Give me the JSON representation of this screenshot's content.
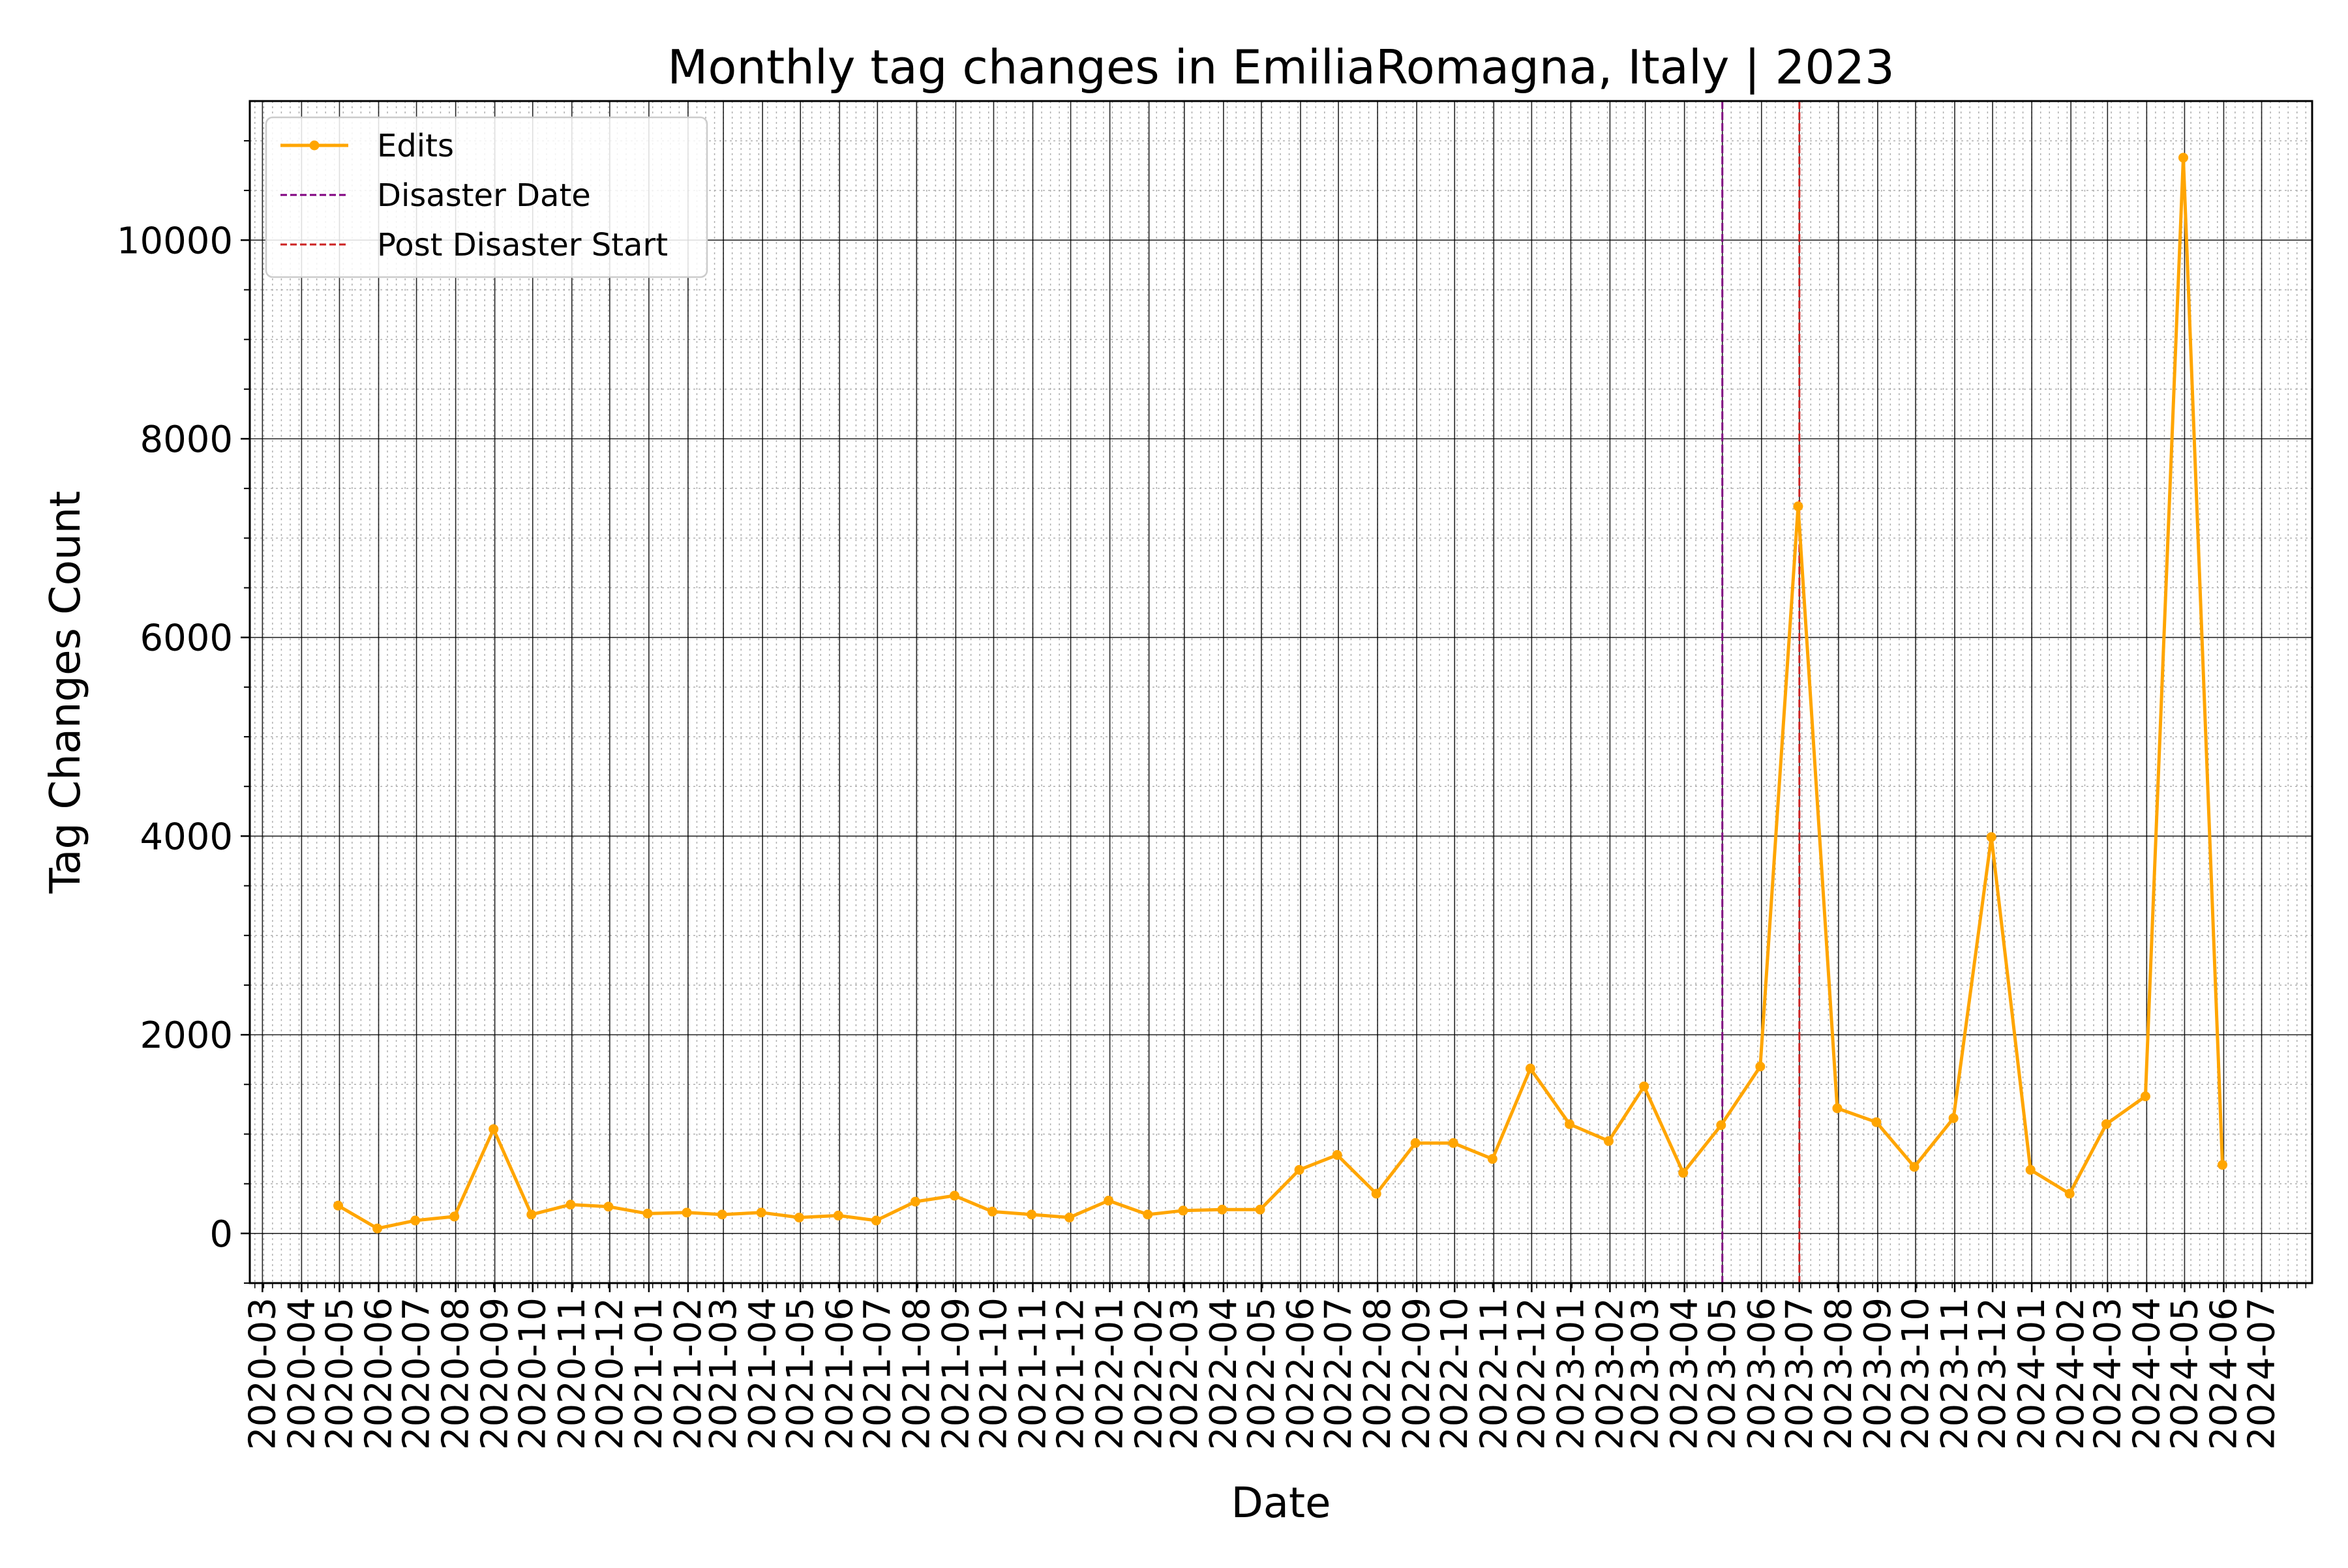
{
  "chart_data": {
    "type": "line",
    "title": "Monthly tag changes in EmiliaRomagna, Italy | 2023",
    "xlabel": "Date",
    "ylabel": "Tag Changes Count",
    "x_tick_labels": [
      "2020-03",
      "2020-04",
      "2020-05",
      "2020-06",
      "2020-07",
      "2020-08",
      "2020-09",
      "2020-10",
      "2020-11",
      "2020-12",
      "2021-01",
      "2021-02",
      "2021-03",
      "2021-04",
      "2021-05",
      "2021-06",
      "2021-07",
      "2021-08",
      "2021-09",
      "2021-10",
      "2021-11",
      "2021-12",
      "2022-01",
      "2022-02",
      "2022-03",
      "2022-04",
      "2022-05",
      "2022-06",
      "2022-07",
      "2022-08",
      "2022-09",
      "2022-10",
      "2022-11",
      "2022-12",
      "2023-01",
      "2023-02",
      "2023-03",
      "2023-04",
      "2023-05",
      "2023-06",
      "2023-07",
      "2023-08",
      "2023-09",
      "2023-10",
      "2023-11",
      "2023-12",
      "2024-01",
      "2024-02",
      "2024-03",
      "2024-04",
      "2024-05",
      "2024-06",
      "2024-07"
    ],
    "xlim": [
      "2020-02-20",
      "2024-08-10"
    ],
    "ylim": [
      -500,
      11400
    ],
    "y_ticks": [
      0,
      2000,
      4000,
      6000,
      8000,
      10000
    ],
    "y_tick_labels": [
      "0",
      "2000",
      "4000",
      "6000",
      "8000",
      "10000"
    ],
    "y_minor_step": 500,
    "grid": true,
    "legend_position": "top-left",
    "series": [
      {
        "name": "Edits",
        "color": "#FFA500",
        "marker": "circle",
        "x": [
          "2020-04-30",
          "2020-05-31",
          "2020-06-30",
          "2020-07-31",
          "2020-08-31",
          "2020-09-30",
          "2020-10-31",
          "2020-11-30",
          "2020-12-31",
          "2021-01-31",
          "2021-02-28",
          "2021-03-31",
          "2021-04-30",
          "2021-05-31",
          "2021-06-30",
          "2021-07-31",
          "2021-08-31",
          "2021-09-30",
          "2021-10-31",
          "2021-11-30",
          "2021-12-31",
          "2022-01-31",
          "2022-02-28",
          "2022-03-31",
          "2022-04-30",
          "2022-05-31",
          "2022-06-30",
          "2022-07-31",
          "2022-08-31",
          "2022-09-30",
          "2022-10-31",
          "2022-11-30",
          "2022-12-31",
          "2023-01-31",
          "2023-02-28",
          "2023-03-31",
          "2023-04-30",
          "2023-05-31",
          "2023-06-30",
          "2023-07-31",
          "2023-08-31",
          "2023-09-30",
          "2023-10-31",
          "2023-11-30",
          "2023-12-31",
          "2024-01-31",
          "2024-02-29",
          "2024-03-31",
          "2024-04-30",
          "2024-05-31"
        ],
        "y": [
          280,
          50,
          130,
          170,
          1050,
          190,
          290,
          270,
          200,
          210,
          190,
          210,
          160,
          180,
          130,
          320,
          380,
          220,
          190,
          160,
          330,
          190,
          230,
          240,
          240,
          640,
          790,
          400,
          910,
          910,
          750,
          1660,
          1100,
          930,
          1480,
          610,
          1090,
          1680,
          7320,
          1260,
          1120,
          670,
          1160,
          3990,
          640,
          400,
          1100,
          1380,
          10830,
          690
        ]
      }
    ],
    "reference_lines": [
      {
        "name": "Disaster Date",
        "x": "2023-05-01",
        "color": "#800080",
        "style": "dashed"
      },
      {
        "name": "Post Disaster Start",
        "x": "2023-07-01",
        "color": "#CC2222",
        "style": "dashed"
      }
    ]
  }
}
